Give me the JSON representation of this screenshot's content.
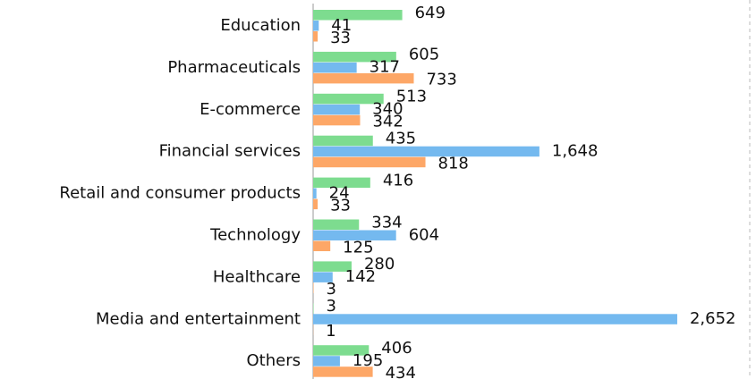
{
  "chart_data": {
    "type": "bar",
    "orientation": "horizontal",
    "categories": [
      "Education",
      "Pharmaceuticals",
      "E-commerce",
      "Financial services",
      "Retail and consumer products",
      "Technology",
      "Healthcare",
      "Media and entertainment",
      "Others"
    ],
    "series": [
      {
        "color": "#7ddc8f",
        "values": [
          649,
          605,
          513,
          435,
          416,
          334,
          280,
          3,
          406
        ]
      },
      {
        "color": "#74b9ef",
        "values": [
          41,
          317,
          340,
          1648,
          24,
          604,
          142,
          2652,
          195
        ],
        "value_labels": [
          "41",
          "317",
          "340",
          "1,648",
          "24",
          "604",
          "142",
          "2,652",
          "195"
        ]
      },
      {
        "color": "#fda767",
        "values": [
          33,
          733,
          342,
          818,
          33,
          125,
          3,
          1,
          434
        ]
      }
    ],
    "xlim": [
      0,
      3180
    ]
  }
}
